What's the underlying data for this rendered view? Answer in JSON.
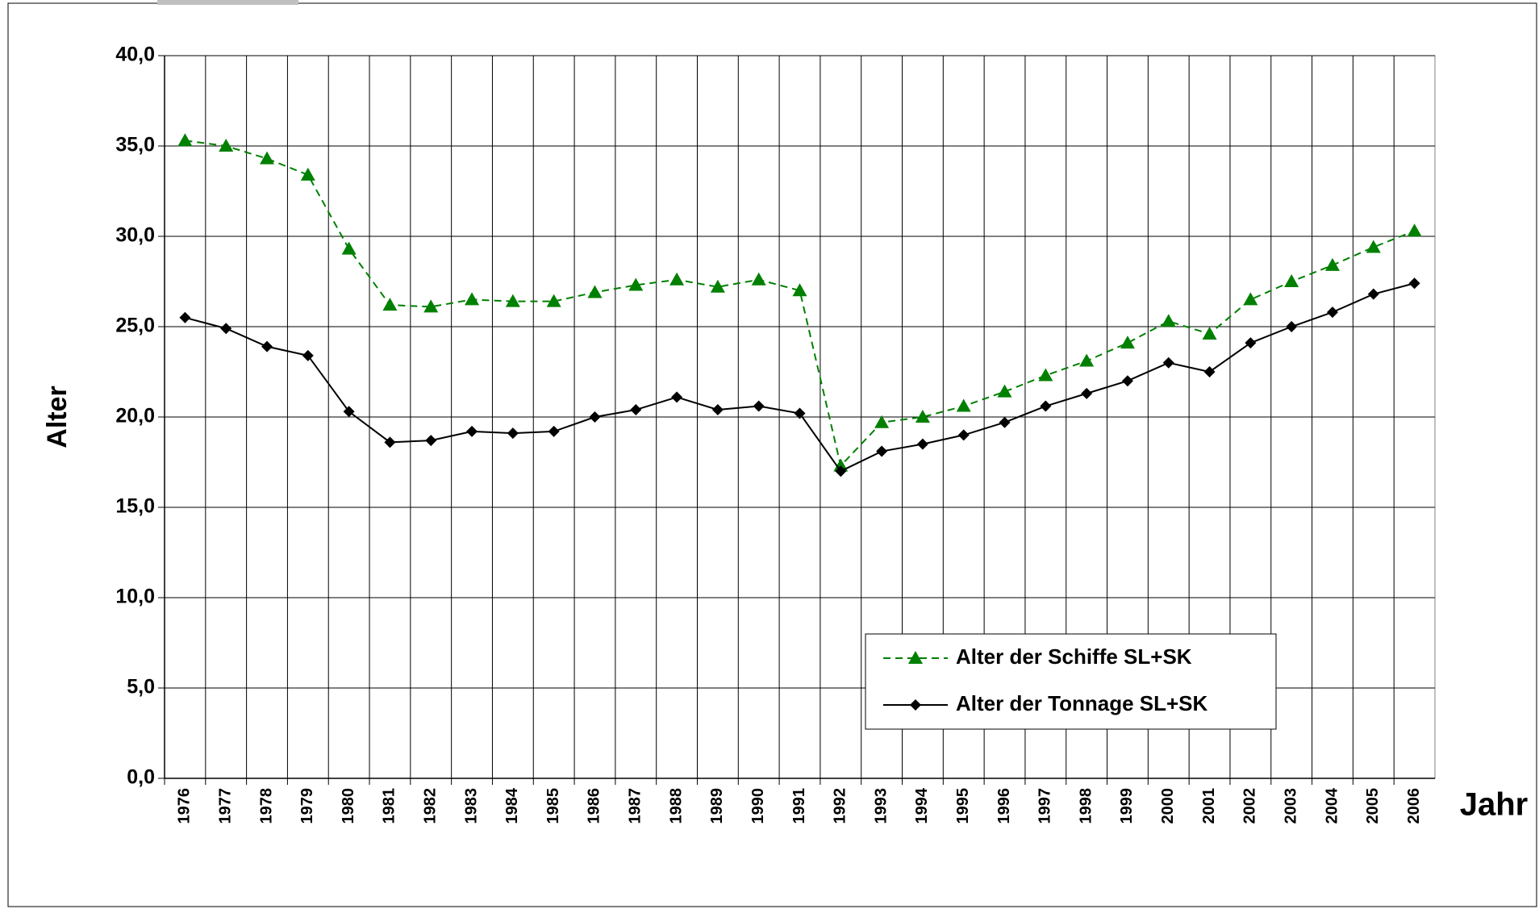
{
  "chart_data": {
    "type": "line",
    "categories": [
      "1976",
      "1977",
      "1978",
      "1979",
      "1980",
      "1981",
      "1982",
      "1983",
      "1984",
      "1985",
      "1986",
      "1987",
      "1988",
      "1989",
      "1990",
      "1991",
      "1992",
      "1993",
      "1994",
      "1995",
      "1996",
      "1997",
      "1998",
      "1999",
      "2000",
      "2001",
      "2002",
      "2003",
      "2004",
      "2005",
      "2006"
    ],
    "series": [
      {
        "name": "Alter der Schiffe SL+SK",
        "color": "#008000",
        "marker": "triangle",
        "dash": true,
        "values": [
          35.3,
          35.0,
          34.3,
          33.4,
          29.3,
          26.2,
          26.1,
          26.5,
          26.4,
          26.4,
          26.9,
          27.3,
          27.6,
          27.2,
          27.6,
          27.0,
          17.3,
          19.7,
          20.0,
          20.6,
          21.4,
          22.3,
          23.1,
          24.1,
          25.3,
          24.6,
          26.5,
          27.5,
          28.4,
          29.4,
          30.3
        ]
      },
      {
        "name": "Alter der Tonnage SL+SK",
        "color": "#000000",
        "marker": "diamond",
        "dash": false,
        "values": [
          25.5,
          24.9,
          23.9,
          23.4,
          20.3,
          18.6,
          18.7,
          19.2,
          19.1,
          19.2,
          20.0,
          20.4,
          21.1,
          20.4,
          20.6,
          20.2,
          17.0,
          18.1,
          18.5,
          19.0,
          19.7,
          20.6,
          21.3,
          22.0,
          23.0,
          22.5,
          24.1,
          25.0,
          25.8,
          26.8,
          27.4
        ]
      }
    ],
    "y_label": "Alter",
    "x_label": "Jahr",
    "ylim": [
      0,
      40
    ],
    "yticks": [
      {
        "value": 0,
        "label": "0,0"
      },
      {
        "value": 5,
        "label": "5,0"
      },
      {
        "value": 10,
        "label": "10,0"
      },
      {
        "value": 15,
        "label": "15,0"
      },
      {
        "value": 20,
        "label": "20,0"
      },
      {
        "value": 25,
        "label": "25,0"
      },
      {
        "value": 30,
        "label": "30,0"
      },
      {
        "value": 35,
        "label": "35,0"
      },
      {
        "value": 40,
        "label": "40,0"
      }
    ],
    "grid": true
  }
}
